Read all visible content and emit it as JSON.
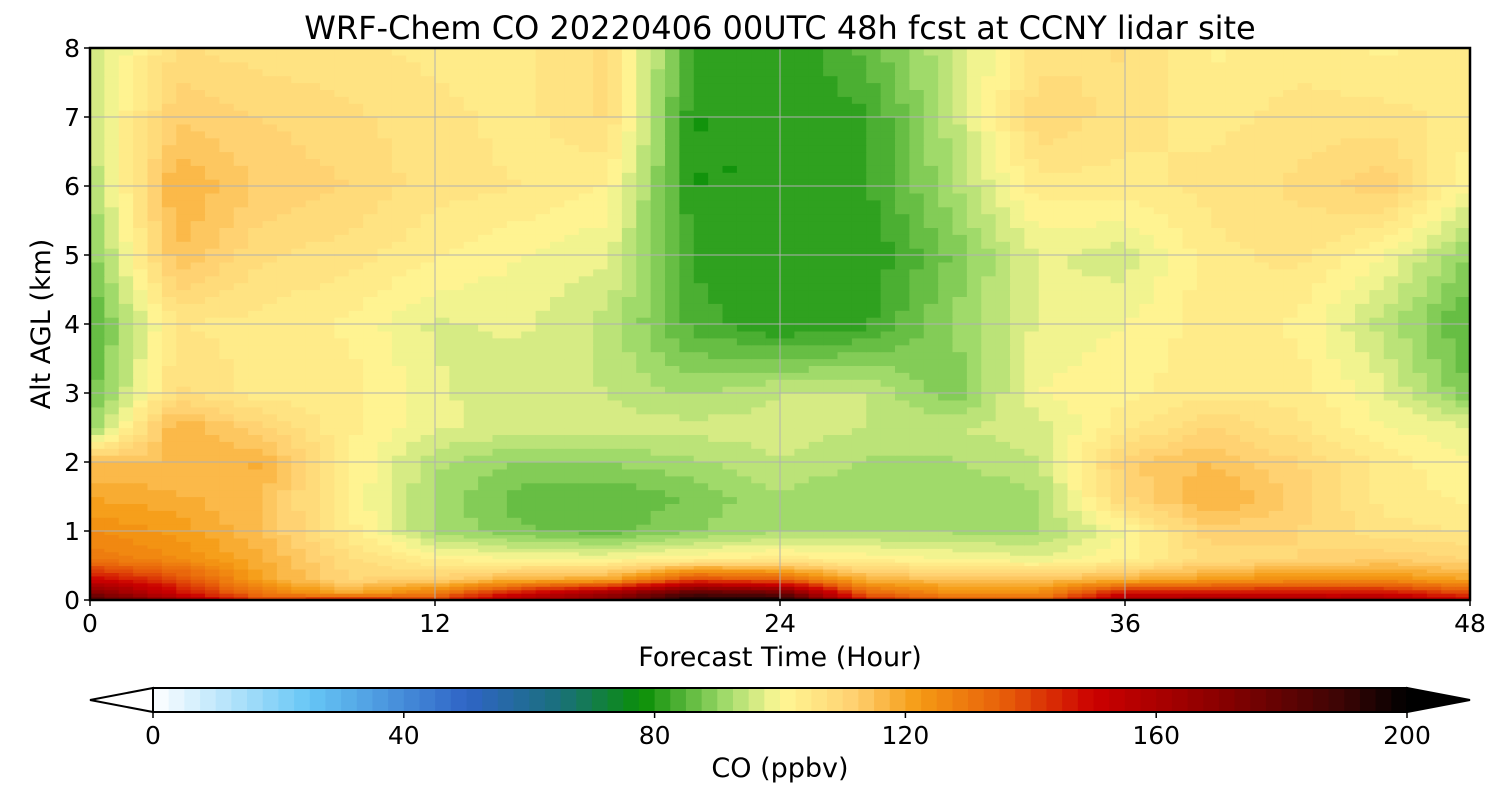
{
  "chart_data": {
    "type": "heatmap",
    "title": "WRF-Chem CO  20220406 00UTC 48h fcst at CCNY lidar site",
    "xlabel": "Forecast Time (Hour)",
    "ylabel": "Alt AGL (km)",
    "xlim": [
      0,
      48
    ],
    "ylim": [
      0,
      8
    ],
    "x_ticks": [
      0,
      12,
      24,
      36,
      48
    ],
    "y_ticks": [
      0,
      1,
      2,
      3,
      4,
      5,
      6,
      7,
      8
    ],
    "grid": true,
    "colorbar": {
      "label": "CO  (ppbv)",
      "range": [
        0,
        200
      ],
      "ticks": [
        0,
        40,
        80,
        120,
        160,
        200
      ],
      "extend": "both",
      "colormap_stops": [
        {
          "v": 0,
          "color": "#ffffff"
        },
        {
          "v": 25,
          "color": "#66c6f5"
        },
        {
          "v": 50,
          "color": "#2f64c6"
        },
        {
          "v": 65,
          "color": "#19707a"
        },
        {
          "v": 78,
          "color": "#0a8f06"
        },
        {
          "v": 92,
          "color": "#a8de70"
        },
        {
          "v": 100,
          "color": "#fff795"
        },
        {
          "v": 112,
          "color": "#ffd070"
        },
        {
          "v": 122,
          "color": "#f59b14"
        },
        {
          "v": 135,
          "color": "#e8620a"
        },
        {
          "v": 150,
          "color": "#cc0000"
        },
        {
          "v": 170,
          "color": "#8a0000"
        },
        {
          "v": 190,
          "color": "#3a0505"
        },
        {
          "v": 200,
          "color": "#000000"
        }
      ]
    },
    "x": [
      0,
      3,
      6,
      9,
      12,
      15,
      18,
      21,
      24,
      27,
      30,
      33,
      36,
      39,
      42,
      45,
      48
    ],
    "y": [
      0,
      0.1,
      0.3,
      0.6,
      1,
      1.5,
      2,
      2.5,
      3,
      4,
      5,
      6,
      7,
      8
    ],
    "z": [
      [
        185,
        165,
        140,
        150,
        140,
        160,
        170,
        198,
        198,
        145,
        135,
        135,
        160,
        165,
        160,
        160,
        150
      ],
      [
        175,
        150,
        130,
        120,
        130,
        150,
        165,
        185,
        180,
        135,
        125,
        125,
        150,
        150,
        150,
        150,
        140
      ],
      [
        150,
        140,
        120,
        110,
        112,
        118,
        120,
        140,
        135,
        118,
        115,
        115,
        118,
        122,
        125,
        125,
        120
      ],
      [
        130,
        125,
        118,
        108,
        102,
        100,
        100,
        102,
        104,
        102,
        100,
        98,
        102,
        108,
        110,
        112,
        110
      ],
      [
        125,
        122,
        115,
        104,
        92,
        88,
        86,
        90,
        92,
        92,
        92,
        92,
        100,
        112,
        110,
        106,
        105
      ],
      [
        120,
        118,
        115,
        102,
        92,
        86,
        85,
        88,
        92,
        90,
        90,
        92,
        110,
        118,
        112,
        104,
        102
      ],
      [
        115,
        115,
        118,
        103,
        93,
        90,
        90,
        92,
        95,
        92,
        92,
        95,
        112,
        115,
        110,
        104,
        100
      ],
      [
        90,
        118,
        110,
        103,
        98,
        96,
        96,
        96,
        96,
        95,
        95,
        96,
        104,
        110,
        106,
        100,
        98
      ],
      [
        86,
        108,
        104,
        104,
        98,
        96,
        95,
        92,
        95,
        95,
        88,
        100,
        102,
        104,
        104,
        98,
        88
      ],
      [
        84,
        105,
        104,
        102,
        97,
        98,
        94,
        84,
        80,
        82,
        90,
        98,
        100,
        104,
        102,
        94,
        84
      ],
      [
        88,
        115,
        108,
        106,
        103,
        100,
        98,
        82,
        80,
        80,
        88,
        98,
        96,
        104,
        106,
        100,
        90
      ],
      [
        92,
        118,
        112,
        110,
        106,
        105,
        102,
        80,
        80,
        82,
        92,
        104,
        104,
        106,
        108,
        112,
        100
      ],
      [
        96,
        112,
        110,
        108,
        106,
        104,
        108,
        80,
        80,
        82,
        94,
        110,
        106,
        104,
        106,
        106,
        104
      ],
      [
        94,
        108,
        106,
        106,
        104,
        104,
        108,
        82,
        80,
        86,
        95,
        106,
        108,
        102,
        104,
        102,
        104
      ]
    ]
  }
}
